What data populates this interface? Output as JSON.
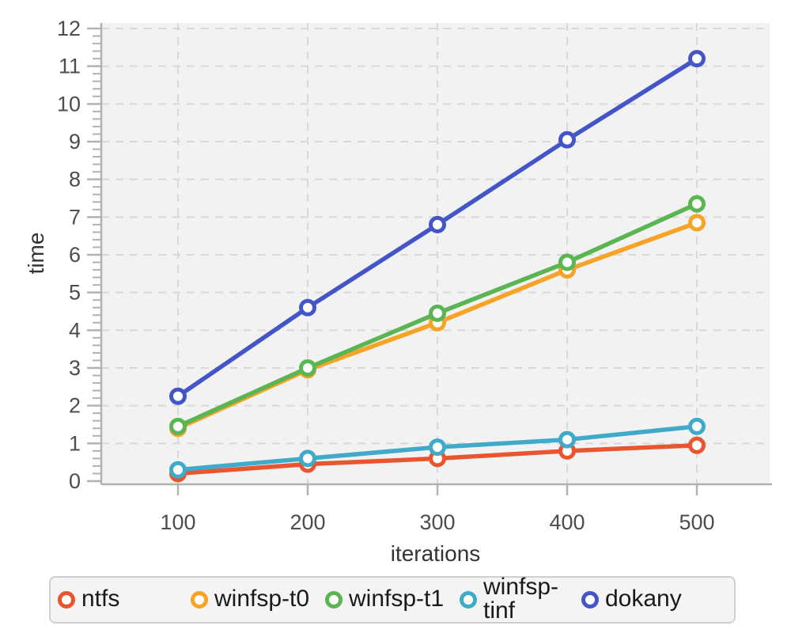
{
  "theme": {
    "page_bg": "#ffffff",
    "plot_bg": "#f2f2f2",
    "grid_color": "#d8d8d8",
    "axis_color": "#b2b2b2",
    "tick_label_color": "#4d4d4d",
    "axis_title_color": "#333333",
    "legend_bg": "#f4f4f4",
    "legend_border": "#cfcfcf",
    "legend_text_color": "#1a1a1a"
  },
  "chart_data": {
    "type": "line",
    "title": "",
    "xlabel": "iterations",
    "ylabel": "time",
    "x": [
      100,
      200,
      300,
      400,
      500
    ],
    "xtick_labels": [
      "100",
      "200",
      "300",
      "400",
      "500"
    ],
    "ylim": [
      0,
      12
    ],
    "yticks": [
      0,
      1,
      2,
      3,
      4,
      5,
      6,
      7,
      8,
      9,
      10,
      11,
      12
    ],
    "y_minor_step": 0.2,
    "grid": "dashed-both-axes",
    "marker": "open-circle",
    "legend_position": "bottom",
    "series": [
      {
        "name": "ntfs",
        "color": "#e8552f",
        "values": [
          0.2,
          0.45,
          0.6,
          0.8,
          0.95
        ]
      },
      {
        "name": "winfsp-t0",
        "color": "#f7a325",
        "values": [
          1.4,
          2.95,
          4.2,
          5.6,
          6.85
        ]
      },
      {
        "name": "winfsp-t1",
        "color": "#5ab552",
        "values": [
          1.45,
          3.0,
          4.45,
          5.8,
          7.35
        ]
      },
      {
        "name": "winfsp-tinf",
        "color": "#41aac9",
        "values": [
          0.3,
          0.6,
          0.9,
          1.1,
          1.45
        ]
      },
      {
        "name": "dokany",
        "color": "#4456c7",
        "values": [
          2.25,
          4.6,
          6.8,
          9.05,
          11.2
        ]
      }
    ]
  }
}
